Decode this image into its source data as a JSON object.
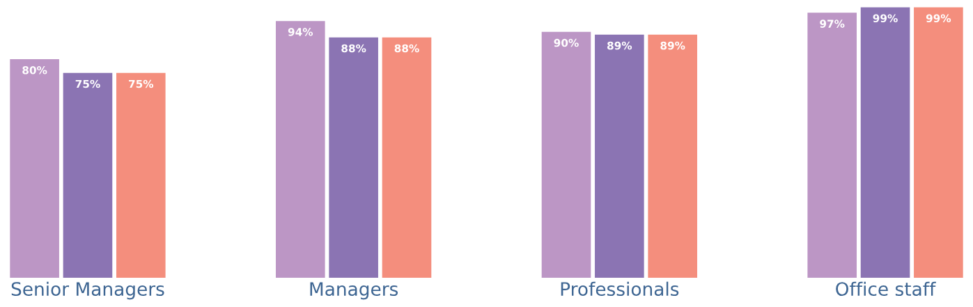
{
  "chart_data": {
    "type": "bar",
    "categories": [
      "Senior Managers",
      "Managers",
      "Professionals",
      "Office staff"
    ],
    "series": [
      {
        "color": "#bc96c5",
        "values": [
          80,
          94,
          90,
          97
        ],
        "value_labels": [
          "80%",
          "94%",
          "90%",
          "97%"
        ]
      },
      {
        "color": "#8b74b3",
        "values": [
          75,
          88,
          89,
          99
        ],
        "value_labels": [
          "75%",
          "88%",
          "89%",
          "99%"
        ]
      },
      {
        "color": "#f48e7d",
        "values": [
          75,
          88,
          89,
          99
        ],
        "value_labels": [
          "75%",
          "88%",
          "89%",
          "99%"
        ]
      }
    ],
    "grid": false
  }
}
